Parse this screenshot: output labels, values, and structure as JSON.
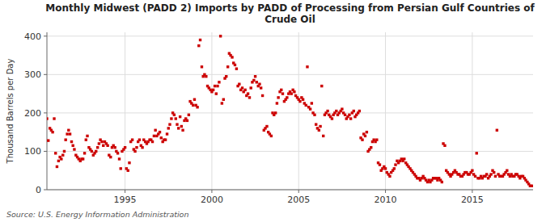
{
  "chart_data": {
    "type": "scatter",
    "title": "Monthly Midwest (PADD 2) Imports by PADD of Processing from Persian Gulf Countries of\nCrude Oil",
    "y_label": "Thousand Barrels per Day",
    "annotations": [
      "Source: U.S. Energy Information Administration"
    ],
    "color": "#cc0000",
    "marker": "square",
    "grid": true,
    "xlim": [
      1990.5,
      2018.5
    ],
    "xticks": [
      1995,
      2000,
      2005,
      2010,
      2015
    ],
    "ylim": [
      0,
      410
    ],
    "yticks": [
      0,
      100,
      200,
      300,
      400
    ],
    "x": [
      1990.5,
      1990.58,
      1990.67,
      1990.75,
      1990.83,
      1990.92,
      1991.0,
      1991.08,
      1991.17,
      1991.25,
      1991.33,
      1991.42,
      1991.5,
      1991.58,
      1991.67,
      1991.75,
      1991.83,
      1991.92,
      1992.0,
      1992.08,
      1992.17,
      1992.25,
      1992.33,
      1992.42,
      1992.5,
      1992.58,
      1992.67,
      1992.75,
      1992.83,
      1992.92,
      1993.0,
      1993.08,
      1993.17,
      1993.25,
      1993.33,
      1993.42,
      1993.5,
      1993.58,
      1993.67,
      1993.75,
      1993.83,
      1993.92,
      1994.0,
      1994.08,
      1994.17,
      1994.25,
      1994.33,
      1994.42,
      1994.5,
      1994.58,
      1994.67,
      1994.75,
      1994.83,
      1994.92,
      1995.0,
      1995.08,
      1995.17,
      1995.25,
      1995.33,
      1995.42,
      1995.5,
      1995.58,
      1995.67,
      1995.75,
      1995.83,
      1995.92,
      1996.0,
      1996.08,
      1996.17,
      1996.25,
      1996.33,
      1996.42,
      1996.5,
      1996.58,
      1996.67,
      1996.75,
      1996.83,
      1996.92,
      1997.0,
      1997.08,
      1997.17,
      1997.25,
      1997.33,
      1997.42,
      1997.5,
      1997.58,
      1997.67,
      1997.75,
      1997.83,
      1997.92,
      1998.0,
      1998.08,
      1998.17,
      1998.25,
      1998.33,
      1998.42,
      1998.5,
      1998.58,
      1998.67,
      1998.75,
      1998.83,
      1998.92,
      1999.0,
      1999.08,
      1999.17,
      1999.25,
      1999.33,
      1999.42,
      1999.5,
      1999.58,
      1999.67,
      1999.75,
      1999.83,
      1999.92,
      2000.0,
      2000.08,
      2000.17,
      2000.25,
      2000.33,
      2000.42,
      2000.5,
      2000.58,
      2000.67,
      2000.75,
      2000.83,
      2000.92,
      2001.0,
      2001.08,
      2001.17,
      2001.25,
      2001.33,
      2001.42,
      2001.5,
      2001.58,
      2001.67,
      2001.75,
      2001.83,
      2001.92,
      2002.0,
      2002.08,
      2002.17,
      2002.25,
      2002.33,
      2002.42,
      2002.5,
      2002.58,
      2002.67,
      2002.75,
      2002.83,
      2002.92,
      2003.0,
      2003.08,
      2003.17,
      2003.25,
      2003.33,
      2003.42,
      2003.5,
      2003.58,
      2003.67,
      2003.75,
      2003.83,
      2003.92,
      2004.0,
      2004.08,
      2004.17,
      2004.25,
      2004.33,
      2004.42,
      2004.5,
      2004.58,
      2004.67,
      2004.75,
      2004.83,
      2004.92,
      2005.0,
      2005.08,
      2005.17,
      2005.25,
      2005.33,
      2005.42,
      2005.5,
      2005.58,
      2005.67,
      2005.75,
      2005.83,
      2005.92,
      2006.0,
      2006.08,
      2006.17,
      2006.25,
      2006.33,
      2006.42,
      2006.5,
      2006.58,
      2006.67,
      2006.75,
      2006.83,
      2006.92,
      2007.0,
      2007.08,
      2007.17,
      2007.25,
      2007.33,
      2007.42,
      2007.5,
      2007.58,
      2007.67,
      2007.75,
      2007.83,
      2007.92,
      2008.0,
      2008.08,
      2008.17,
      2008.25,
      2008.33,
      2008.42,
      2008.5,
      2008.58,
      2008.67,
      2008.75,
      2008.83,
      2008.92,
      2009.0,
      2009.08,
      2009.17,
      2009.25,
      2009.33,
      2009.42,
      2009.5,
      2009.58,
      2009.67,
      2009.75,
      2009.83,
      2009.92,
      2010.0,
      2010.08,
      2010.17,
      2010.25,
      2010.33,
      2010.42,
      2010.5,
      2010.58,
      2010.67,
      2010.75,
      2010.83,
      2010.92,
      2011.0,
      2011.08,
      2011.17,
      2011.25,
      2011.33,
      2011.42,
      2011.5,
      2011.58,
      2011.67,
      2011.75,
      2011.83,
      2011.92,
      2012.0,
      2012.08,
      2012.17,
      2012.25,
      2012.33,
      2012.42,
      2012.5,
      2012.58,
      2012.67,
      2012.75,
      2012.83,
      2012.92,
      2013.0,
      2013.08,
      2013.17,
      2013.25,
      2013.33,
      2013.42,
      2013.5,
      2013.58,
      2013.67,
      2013.75,
      2013.83,
      2013.92,
      2014.0,
      2014.08,
      2014.17,
      2014.25,
      2014.33,
      2014.42,
      2014.5,
      2014.58,
      2014.67,
      2014.75,
      2014.83,
      2014.92,
      2015.0,
      2015.08,
      2015.17,
      2015.25,
      2015.33,
      2015.42,
      2015.5,
      2015.58,
      2015.67,
      2015.75,
      2015.83,
      2015.92,
      2016.0,
      2016.08,
      2016.17,
      2016.25,
      2016.33,
      2016.42,
      2016.5,
      2016.58,
      2016.67,
      2016.75,
      2016.83,
      2016.92,
      2017.0,
      2017.08,
      2017.17,
      2017.25,
      2017.33,
      2017.42,
      2017.5,
      2017.58,
      2017.67,
      2017.75,
      2017.83,
      2017.92,
      2018.0,
      2018.08,
      2018.17,
      2018.25,
      2018.33,
      2018.42
    ],
    "values": [
      185,
      128,
      160,
      155,
      150,
      185,
      95,
      60,
      75,
      85,
      80,
      90,
      100,
      130,
      145,
      155,
      145,
      125,
      115,
      105,
      90,
      85,
      80,
      75,
      80,
      80,
      95,
      130,
      140,
      110,
      105,
      100,
      90,
      95,
      100,
      110,
      120,
      130,
      125,
      115,
      125,
      120,
      115,
      90,
      85,
      110,
      115,
      110,
      100,
      95,
      80,
      55,
      100,
      105,
      110,
      55,
      50,
      70,
      125,
      130,
      105,
      100,
      110,
      125,
      130,
      115,
      110,
      130,
      125,
      120,
      125,
      130,
      130,
      125,
      140,
      155,
      140,
      145,
      150,
      135,
      125,
      130,
      130,
      145,
      160,
      170,
      185,
      200,
      195,
      185,
      170,
      160,
      190,
      165,
      155,
      180,
      185,
      180,
      195,
      230,
      225,
      220,
      235,
      220,
      215,
      375,
      390,
      320,
      295,
      300,
      295,
      270,
      265,
      260,
      255,
      260,
      270,
      250,
      270,
      280,
      400,
      225,
      235,
      290,
      295,
      320,
      355,
      350,
      345,
      330,
      325,
      315,
      270,
      275,
      260,
      265,
      255,
      260,
      245,
      250,
      240,
      265,
      280,
      285,
      295,
      280,
      270,
      275,
      265,
      245,
      155,
      160,
      165,
      150,
      145,
      140,
      200,
      195,
      200,
      225,
      240,
      255,
      260,
      250,
      230,
      235,
      240,
      250,
      255,
      250,
      260,
      255,
      245,
      240,
      235,
      230,
      240,
      235,
      225,
      220,
      320,
      215,
      210,
      225,
      200,
      195,
      170,
      160,
      155,
      165,
      270,
      140,
      195,
      200,
      205,
      195,
      190,
      185,
      195,
      200,
      205,
      195,
      200,
      205,
      210,
      200,
      195,
      185,
      190,
      195,
      185,
      200,
      205,
      190,
      195,
      200,
      205,
      135,
      130,
      145,
      140,
      150,
      100,
      105,
      110,
      125,
      130,
      125,
      130,
      70,
      65,
      50,
      55,
      60,
      55,
      45,
      40,
      35,
      45,
      50,
      55,
      65,
      75,
      70,
      75,
      80,
      75,
      80,
      70,
      65,
      60,
      55,
      50,
      45,
      40,
      35,
      30,
      30,
      25,
      30,
      35,
      30,
      25,
      20,
      25,
      20,
      25,
      30,
      30,
      30,
      25,
      30,
      25,
      20,
      120,
      115,
      50,
      45,
      40,
      35,
      40,
      45,
      50,
      45,
      40,
      40,
      35,
      35,
      40,
      45,
      45,
      40,
      40,
      45,
      50,
      40,
      35,
      95,
      30,
      30,
      35,
      30,
      35,
      35,
      40,
      30,
      35,
      40,
      50,
      45,
      35,
      155,
      40,
      35,
      35,
      35,
      40,
      45,
      50,
      40,
      35,
      40,
      35,
      35,
      40,
      40,
      35,
      30,
      35,
      35,
      30,
      25,
      20,
      15,
      10,
      10
    ]
  }
}
